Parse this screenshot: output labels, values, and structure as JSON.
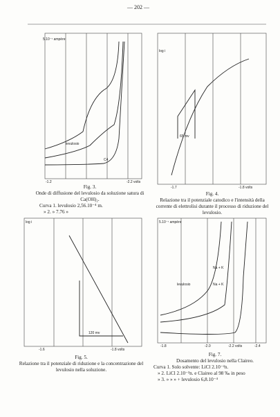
{
  "header": {
    "page_number": "— 202 —"
  },
  "figures": [
    {
      "axis_label": "5.10⁻⁷ ampère",
      "labels": [
        "levulosio",
        "C4"
      ],
      "ticks": [
        "-1.2",
        "-2.2 volts"
      ],
      "caption": {
        "title": "Fig. 3.",
        "text": "Onde di diffusione del levulosio da soluzione satura di Ca(OH)₂.",
        "lines": [
          "Curva 1. levulosio 2,56.10⁻⁴ m.",
          "» 2. » 7.76 »"
        ]
      }
    },
    {
      "axis_label": "log i",
      "labels": [
        "65 mv"
      ],
      "ticks": [
        "-1.7",
        "-1.8 volts"
      ],
      "caption": {
        "title": "Fig. 4.",
        "text": "Relazione tra il potenziale catodico e l'intensità della corrente di elettrolisi durante il processo di riduzione del levulosio."
      }
    },
    {
      "axis_label": "log i",
      "labels": [
        "120 mv"
      ],
      "ticks": [
        "-1.6",
        "-1.8 volts"
      ],
      "caption": {
        "title": "Fig. 5.",
        "text": "Relazione tra il potenziale di riduzione e la concentrazione del levulosio nella soluzione."
      }
    },
    {
      "axis_label": "5.10⁻⁷ ampère",
      "labels": [
        "Na + K",
        "Na + K",
        "levulosio"
      ],
      "ticks": [
        "-1.8",
        "-2.0",
        "-2.2 volts",
        "-2.4"
      ],
      "caption": {
        "title": "Fig. 7.",
        "text": "Dosamento del levulosio nella Claireo.",
        "lines": [
          "Curva 1. Solo solvente: LiCl 2.10⁻²n.",
          "» 2. LiCl 2.10⁻²n. e Claireo al 98 ‰ in peso",
          "» 3. » » » + levulosio 6,8.10⁻⁴"
        ]
      }
    }
  ]
}
